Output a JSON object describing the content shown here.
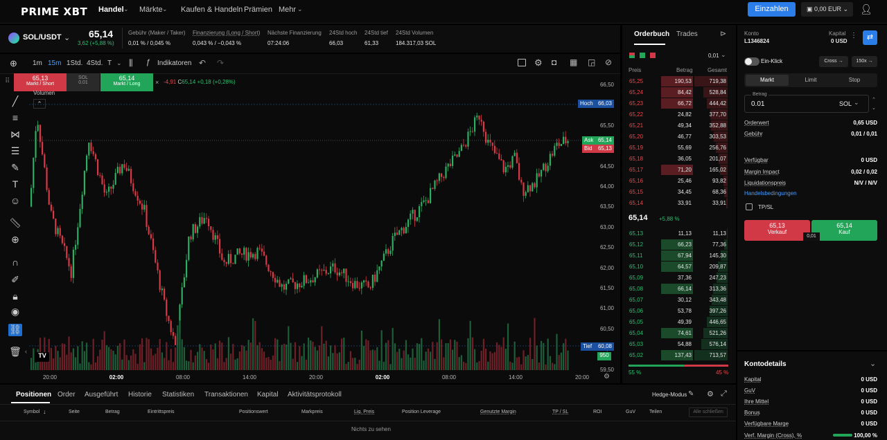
{
  "nav": {
    "logo": "PRIME XBT",
    "items": [
      "Handel",
      "Märkte",
      "Kaufen & Handeln",
      "Prämien",
      "Mehr"
    ],
    "deposit": "Einzahlen",
    "wallet": "0,00 EUR"
  },
  "ticker": {
    "symbol": "SOL/USDT",
    "price": "65,14",
    "change": "3,62 (+5,88 %)",
    "stats": [
      {
        "label": "Gebühr (Maker / Taker)",
        "value": "0,01 % / 0,045 %"
      },
      {
        "label": "Finanzierung (Long / Short)",
        "value": "0,043 % / −0,043 %"
      },
      {
        "label": "Nächste Finanzierung",
        "value": "07:24:06"
      },
      {
        "label": "24Std hoch",
        "value": "66,03"
      },
      {
        "label": "24Std tief",
        "value": "61,33"
      },
      {
        "label": "24Std Volumen",
        "value": "184.317,03 SOL"
      }
    ]
  },
  "chart_toolbar": {
    "intervals": [
      "1m",
      "15m",
      "1Std.",
      "4Std.",
      "T"
    ],
    "active_interval": "15m",
    "indicators": "Indikatoren"
  },
  "quick_trade": {
    "sell_price": "65,13",
    "sell_label": "Markt / Short",
    "buy_price": "65,14",
    "buy_label": "Markt / Long",
    "mid_top": "SOL",
    "mid_val": "0.01",
    "ohlc": "-4,91",
    "c_label": "C",
    "c_value": "65,14",
    "c_change": "+0,18 (+0,28%)",
    "volume": "Volumen"
  },
  "chart_data": {
    "type": "candlestick",
    "y_ticks": [
      "66,50",
      "66,00",
      "65,50",
      "65,00",
      "64,50",
      "64,00",
      "63,50",
      "63,00",
      "62,50",
      "62,00",
      "61,50",
      "61,00",
      "60,50",
      "60,00",
      "59,50"
    ],
    "x_ticks": [
      "20:00",
      "02:00",
      "08:00",
      "14:00",
      "20:00",
      "02:00",
      "08:00",
      "14:00",
      "20:00"
    ],
    "markers": {
      "high_label": "Hoch",
      "high": "66,03",
      "ask_label": "Ask",
      "ask": "65,14",
      "bid_label": "Bid",
      "bid": "65,13",
      "low_label": "Tief",
      "low": "60,08",
      "vol": "950"
    }
  },
  "orderbook": {
    "tabs": [
      "Orderbuch",
      "Trades"
    ],
    "precision": "0,01",
    "headers": [
      "Preis",
      "Betrag",
      "Gesamt"
    ],
    "asks": [
      [
        "65,25",
        "190,53",
        "719,38"
      ],
      [
        "65,24",
        "84,42",
        "528,84"
      ],
      [
        "65,23",
        "66,72",
        "444,42"
      ],
      [
        "65,22",
        "24,82",
        "377,70"
      ],
      [
        "65,21",
        "49,34",
        "352,88"
      ],
      [
        "65,20",
        "46,77",
        "303,53"
      ],
      [
        "65,19",
        "55,69",
        "256,76"
      ],
      [
        "65,18",
        "36,05",
        "201,07"
      ],
      [
        "65,17",
        "71,20",
        "165,02"
      ],
      [
        "65,16",
        "25,46",
        "93,82"
      ],
      [
        "65,15",
        "34,45",
        "68,36"
      ],
      [
        "65,14",
        "33,91",
        "33,91"
      ]
    ],
    "mid_price": "65,14",
    "mid_change": "+5,88 %",
    "bids": [
      [
        "65,13",
        "11,13",
        "11,13"
      ],
      [
        "65,12",
        "66,23",
        "77,36"
      ],
      [
        "65,11",
        "67,94",
        "145,30"
      ],
      [
        "65,10",
        "64,57",
        "209,87"
      ],
      [
        "65,09",
        "37,36",
        "247,23"
      ],
      [
        "65,08",
        "66,14",
        "313,36"
      ],
      [
        "65,07",
        "30,12",
        "343,48"
      ],
      [
        "65,06",
        "53,78",
        "397,26"
      ],
      [
        "65,05",
        "49,39",
        "446,65"
      ],
      [
        "65,04",
        "74,61",
        "521,26"
      ],
      [
        "65,03",
        "54,88",
        "576,14"
      ],
      [
        "65,02",
        "137,43",
        "713,57"
      ]
    ],
    "buy_pct": "55 %",
    "sell_pct": "45 %"
  },
  "order_panel": {
    "account_label": "Konto",
    "account": "L1346824",
    "capital_label": "Kapital",
    "capital": "0 USD",
    "one_click": "Ein-Klick",
    "margin_mode": "Cross",
    "leverage": "150x",
    "types": [
      "Markt",
      "Limit",
      "Stop"
    ],
    "amount_label": "Betrag",
    "amount": "0.01",
    "unit": "SOL",
    "rows": [
      {
        "l": "Orderwert",
        "r": "0,65 USD"
      },
      {
        "l": "Gebühr",
        "r": "0,01 / 0,01"
      },
      {
        "l": "Verfügbar",
        "r": "0 USD"
      },
      {
        "l": "Margin Impact",
        "r": "0,02 / 0,02"
      },
      {
        "l": "Liquidationspreis",
        "r": "N/V / N/V"
      }
    ],
    "terms": "Handelsbedingungen",
    "tpsl": "TP/SL",
    "sell_price": "65,13",
    "sell": "Verkauf",
    "buy_price": "65,14",
    "buy": "Kauf",
    "spread": "0,01"
  },
  "account_details": {
    "title": "Kontodetails",
    "rows": [
      {
        "l": "Kapital",
        "r": "0 USD"
      },
      {
        "l": "GuV",
        "r": "0 USD"
      },
      {
        "l": "Ihre Mittel",
        "r": "0 USD"
      },
      {
        "l": "Bonus",
        "r": "0 USD"
      },
      {
        "l": "Verfügbare Marge",
        "r": "0 USD"
      },
      {
        "l": "Verf. Margin (Cross), %",
        "r": "100,00 %"
      }
    ]
  },
  "bottom": {
    "tabs": [
      "Positionen",
      "Order",
      "Ausgeführt",
      "Historie",
      "Statistiken",
      "Transaktionen",
      "Kapital",
      "Aktivitätsprotokoll"
    ],
    "hedge": "Hedge-Modus",
    "columns": [
      "Symbol",
      "Seite",
      "Betrag",
      "Eintrittspreis",
      "Positionswert",
      "Markpreis",
      "Liq. Preis",
      "Position Leverage",
      "Genutzte Margin",
      "TP / SL",
      "ROI",
      "GuV",
      "Teilen"
    ],
    "close_all": "Alle schließen",
    "empty": "Nichts zu sehen"
  }
}
